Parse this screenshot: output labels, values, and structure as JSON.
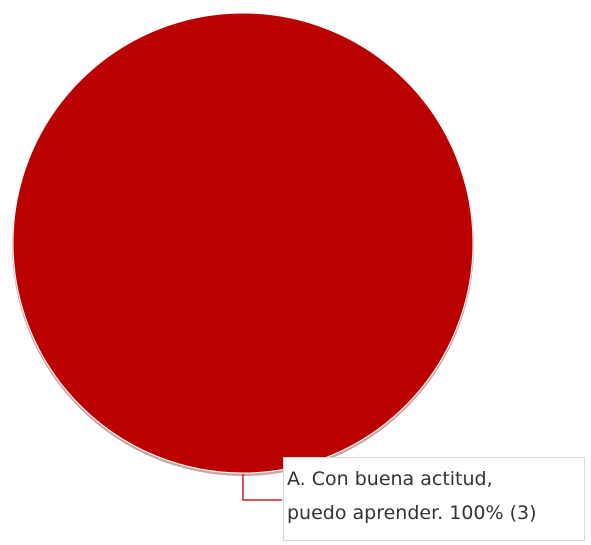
{
  "chart_data": {
    "type": "pie",
    "title": "",
    "slices": [
      {
        "label_line1": "A. Con buena actitud,",
        "label_line2": "puedo aprender.",
        "percent_text": "100%",
        "count_text": "(3)",
        "value": 3,
        "percent": 100,
        "color": "#bb0000"
      }
    ],
    "legend": "none"
  },
  "colors": {
    "slice": "#bb0000",
    "slice_shadow": "#c9a7a7",
    "leader_line": "#c82020",
    "label_box_border": "#d8d8d8",
    "label_text": "#333333"
  }
}
